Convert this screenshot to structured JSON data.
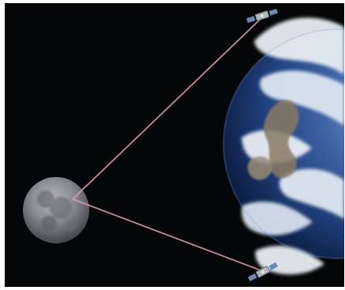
{
  "scene": {
    "bodies": [
      "moon",
      "earth"
    ],
    "objects": [
      "satellite-top",
      "satellite-bottom"
    ],
    "links": [
      "moon-to-satellite-top",
      "moon-to-satellite-bottom"
    ],
    "colors": {
      "space": "#050607",
      "earth_ocean": "#2d4d8e",
      "earth_cloud": "#e7edf4",
      "earth_land": "#8a7a63",
      "moon": "#7c7c84",
      "link_line": "#d9a1a6"
    }
  }
}
